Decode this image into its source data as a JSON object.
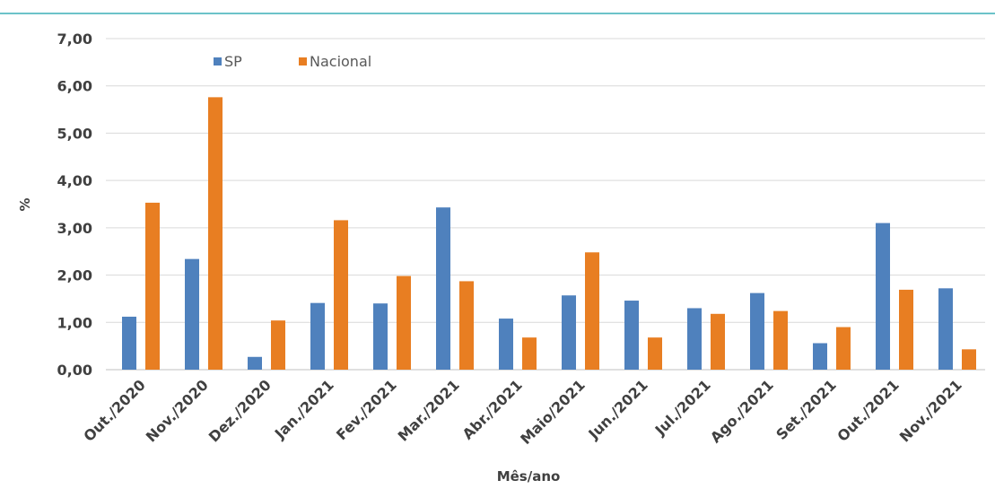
{
  "chart_data": {
    "type": "bar",
    "title": "",
    "xlabel": "Mês/ano",
    "ylabel": "%",
    "ylim": [
      0,
      7
    ],
    "yticks": [
      0,
      1,
      2,
      3,
      4,
      5,
      6,
      7
    ],
    "ytick_labels": [
      "0,00",
      "1,00",
      "2,00",
      "3,00",
      "4,00",
      "5,00",
      "6,00",
      "7,00"
    ],
    "grid": true,
    "legend_position": "top-left",
    "categories": [
      "Out./2020",
      "Nov./2020",
      "Dez./2020",
      "Jan./2021",
      "Fev./2021",
      "Mar./2021",
      "Abr./2021",
      "Maio/2021",
      "Jun./2021",
      "Jul./2021",
      "Ago./2021",
      "Set./2021",
      "Out./2021",
      "Nov./2021"
    ],
    "series": [
      {
        "name": "SP",
        "color": "#4f81bd",
        "values": [
          1.12,
          2.34,
          0.27,
          1.41,
          1.4,
          3.43,
          1.08,
          1.57,
          1.46,
          1.3,
          1.62,
          0.56,
          3.1,
          1.72
        ]
      },
      {
        "name": "Nacional",
        "color": "#e87e22",
        "values": [
          3.53,
          5.76,
          1.04,
          3.16,
          1.98,
          1.87,
          0.68,
          2.48,
          0.68,
          1.18,
          1.24,
          0.9,
          1.69,
          0.43
        ]
      }
    ]
  }
}
